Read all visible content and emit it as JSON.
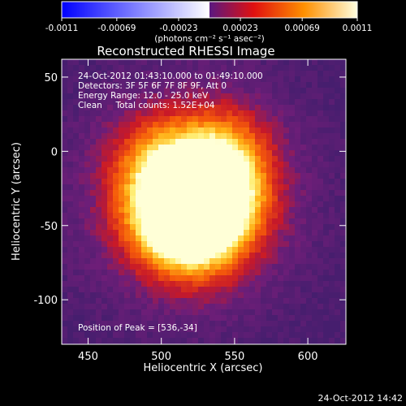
{
  "chart_data": {
    "type": "heatmap",
    "title": "Reconstructed RHESSI Image",
    "xlabel": "Heliocentric X (arcsec)",
    "ylabel": "Heliocentric Y (arcsec)",
    "xlim": [
      432,
      626
    ],
    "ylim": [
      -130,
      62
    ],
    "xticks": [
      {
        "value": 450,
        "label": "450"
      },
      {
        "value": 500,
        "label": "500"
      },
      {
        "value": 550,
        "label": "550"
      },
      {
        "value": 600,
        "label": "600"
      }
    ],
    "yticks": [
      {
        "value": 50,
        "label": "50"
      },
      {
        "value": 0,
        "label": "0"
      },
      {
        "value": -50,
        "label": "-50"
      },
      {
        "value": -100,
        "label": "-100"
      }
    ],
    "colorbar": {
      "range": [
        -0.0011,
        0.0011
      ],
      "ticks": [
        {
          "value": -0.0011,
          "label": "-0.0011"
        },
        {
          "value": -0.00069,
          "label": "-0.00069"
        },
        {
          "value": -0.00023,
          "label": "-0.00023"
        },
        {
          "value": 0.00023,
          "label": "0.00023"
        },
        {
          "value": 0.00069,
          "label": "0.00069"
        },
        {
          "value": 0.0011,
          "label": "0.0011"
        }
      ],
      "unit_label": "(photons cm⁻² s⁻¹ asec⁻²)",
      "colors": [
        "#0000ff",
        "#ffffff",
        "#7a1e9e",
        "#ff0000",
        "#ffa000",
        "#ffffc0",
        "#ffffff"
      ]
    },
    "annotations": {
      "time_range": "24-Oct-2012 01:43:10.000 to 01:49:10.000",
      "detectors": "Detectors: 3F 5F 6F 7F 8F 9F, Att 0",
      "energy": "Energy Range: 12.0 - 25.0 keV",
      "clean": "Clean     Total counts: 1.52E+04",
      "peak": "Position of Peak = [536,-34]"
    },
    "peak": {
      "x": 536,
      "y": -34
    },
    "sources": [
      {
        "x": 536,
        "y": -34,
        "amplitude": 1.0
      },
      {
        "x": 508,
        "y": -44,
        "amplitude": 0.92
      },
      {
        "x": 500,
        "y": -10,
        "amplitude": 0.55
      },
      {
        "x": 540,
        "y": -5,
        "amplitude": 0.6
      },
      {
        "x": 525,
        "y": -58,
        "amplitude": 0.45
      }
    ],
    "grid": false
  },
  "footer": {
    "timestamp": "24-Oct-2012 14:42"
  }
}
